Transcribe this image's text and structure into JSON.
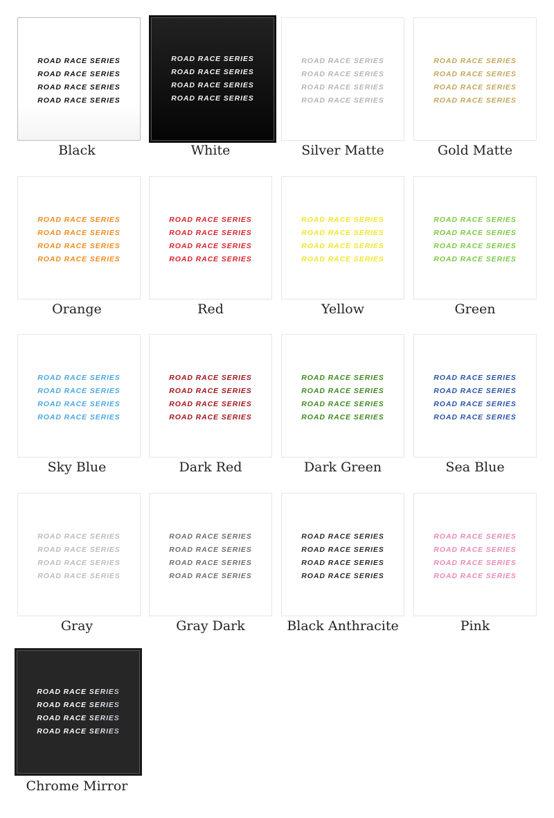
{
  "swatch_text": "ROAD RACE SERIES",
  "swatches": [
    {
      "label": "Black",
      "color": "#111111",
      "style": "black"
    },
    {
      "label": "White",
      "color": "#f2f2f2",
      "style": "dark"
    },
    {
      "label": "Silver Matte",
      "color": "#b5b5b5",
      "style": "light"
    },
    {
      "label": "Gold Matte",
      "color": "#c2a65a",
      "style": "light"
    },
    {
      "label": "Orange",
      "color": "#f08a1c",
      "style": "light"
    },
    {
      "label": "Red",
      "color": "#d8232a",
      "style": "light"
    },
    {
      "label": "Yellow",
      "color": "#f2e62a",
      "style": "light"
    },
    {
      "label": "Green",
      "color": "#7ac943",
      "style": "light"
    },
    {
      "label": "Sky Blue",
      "color": "#4aa8e0",
      "style": "light"
    },
    {
      "label": "Dark Red",
      "color": "#a3141b",
      "style": "light"
    },
    {
      "label": "Dark Green",
      "color": "#3f8a1f",
      "style": "light"
    },
    {
      "label": "Sea Blue",
      "color": "#2a52a8",
      "style": "light"
    },
    {
      "label": "Gray",
      "color": "#bcbcbc",
      "style": "light"
    },
    {
      "label": "Gray Dark",
      "color": "#6e6e6e",
      "style": "light"
    },
    {
      "label": "Black Anthracite",
      "color": "#2a2a2a",
      "style": "light"
    },
    {
      "label": "Pink",
      "color": "#e88ab8",
      "style": "light"
    },
    {
      "label": "Chrome Mirror",
      "color": "#e8e8f0",
      "style": "chrome"
    }
  ]
}
